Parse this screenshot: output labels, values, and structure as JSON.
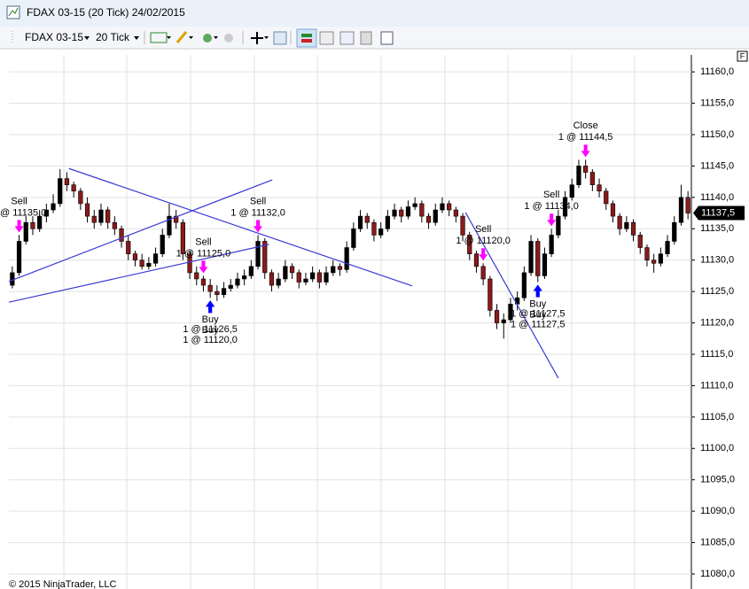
{
  "window": {
    "title": "FDAX 03-15 (20 Tick)  24/02/2015",
    "instrument": "FDAX 03-15",
    "period": "20 Tick",
    "footer": "© 2015 NinjaTrader, LLC",
    "corner": "F"
  },
  "chart_data": {
    "type": "candlestick",
    "ohlc": [
      [
        11126,
        11129,
        11125.5,
        11128
      ],
      [
        11128,
        11134,
        11127.5,
        11133
      ],
      [
        11133,
        11137,
        11132.5,
        11136
      ],
      [
        11136,
        11137,
        11134,
        11135
      ],
      [
        11135,
        11138,
        11134.5,
        11137
      ],
      [
        11137,
        11139,
        11136,
        11138
      ],
      [
        11138,
        11140.5,
        11137.5,
        11139
      ],
      [
        11139,
        11144.5,
        11138.5,
        11143
      ],
      [
        11143,
        11144,
        11141,
        11142
      ],
      [
        11142,
        11142.5,
        11140,
        11141
      ],
      [
        11141,
        11141.5,
        11138,
        11139
      ],
      [
        11139,
        11140,
        11136,
        11137
      ],
      [
        11137,
        11138,
        11135,
        11136
      ],
      [
        11136,
        11139,
        11135.5,
        11138
      ],
      [
        11138,
        11138.5,
        11135,
        11136
      ],
      [
        11136,
        11137,
        11134,
        11135
      ],
      [
        11135,
        11135.5,
        11132,
        11133
      ],
      [
        11133,
        11134,
        11130,
        11131
      ],
      [
        11131,
        11131.5,
        11129,
        11130
      ],
      [
        11130,
        11131,
        11128.5,
        11129
      ],
      [
        11129,
        11130.5,
        11128.5,
        11129.5
      ],
      [
        11129.5,
        11132,
        11129,
        11131
      ],
      [
        11131,
        11135,
        11130.5,
        11134
      ],
      [
        11134,
        11139,
        11133.5,
        11137
      ],
      [
        11137,
        11138,
        11135,
        11136
      ],
      [
        11136,
        11136.5,
        11130,
        11131
      ],
      [
        11131,
        11131.5,
        11127,
        11128
      ],
      [
        11128,
        11129,
        11126,
        11127
      ],
      [
        11127,
        11127.5,
        11125,
        11126
      ],
      [
        11126,
        11127,
        11124,
        11125
      ],
      [
        11125,
        11126,
        11123.5,
        11124.5
      ],
      [
        11124.5,
        11126.5,
        11124,
        11125.5
      ],
      [
        11125.5,
        11127,
        11125,
        11126
      ],
      [
        11126,
        11128,
        11125.5,
        11127
      ],
      [
        11127,
        11128.5,
        11126,
        11127.5
      ],
      [
        11127.5,
        11130,
        11127,
        11129
      ],
      [
        11129,
        11134,
        11128.5,
        11133
      ],
      [
        11133,
        11133.5,
        11127,
        11128
      ],
      [
        11128,
        11128.5,
        11125,
        11126
      ],
      [
        11126,
        11128,
        11125.5,
        11127
      ],
      [
        11127,
        11130,
        11126.5,
        11129
      ],
      [
        11129,
        11129.5,
        11127,
        11128
      ],
      [
        11128,
        11128.5,
        11125.5,
        11126.5
      ],
      [
        11126.5,
        11128,
        11126,
        11127
      ],
      [
        11127,
        11129,
        11126.5,
        11128
      ],
      [
        11128,
        11128.5,
        11125.5,
        11126.5
      ],
      [
        11126.5,
        11129,
        11126,
        11128
      ],
      [
        11128,
        11130,
        11127.5,
        11129
      ],
      [
        11129,
        11129.5,
        11127.5,
        11128.5
      ],
      [
        11128.5,
        11133,
        11128,
        11132
      ],
      [
        11132,
        11136,
        11131.5,
        11135
      ],
      [
        11135,
        11138,
        11134.5,
        11137
      ],
      [
        11137,
        11137.5,
        11135,
        11136
      ],
      [
        11136,
        11136.5,
        11133,
        11134
      ],
      [
        11134,
        11136,
        11133.5,
        11135
      ],
      [
        11135,
        11138,
        11134.5,
        11137
      ],
      [
        11137,
        11139,
        11136.5,
        11138
      ],
      [
        11138,
        11138.5,
        11136,
        11137
      ],
      [
        11137,
        11139.5,
        11136.5,
        11138.5
      ],
      [
        11138.5,
        11140,
        11138,
        11139
      ],
      [
        11139,
        11139.5,
        11136,
        11137
      ],
      [
        11137,
        11137.5,
        11135,
        11136
      ],
      [
        11136,
        11139,
        11135.5,
        11138
      ],
      [
        11138,
        11140,
        11137.5,
        11139
      ],
      [
        11139,
        11139.5,
        11137,
        11138
      ],
      [
        11138,
        11138.5,
        11136,
        11137
      ],
      [
        11137,
        11137.5,
        11133,
        11134
      ],
      [
        11134,
        11134.5,
        11130,
        11131
      ],
      [
        11131,
        11131.5,
        11128,
        11129
      ],
      [
        11129,
        11129.5,
        11126,
        11127
      ],
      [
        11127,
        11127.5,
        11121,
        11122
      ],
      [
        11122,
        11123,
        11119,
        11120
      ],
      [
        11120,
        11121.5,
        11117.5,
        11120.5
      ],
      [
        11120.5,
        11124,
        11120,
        11123
      ],
      [
        11123,
        11125,
        11122,
        11124
      ],
      [
        11124,
        11129,
        11123.5,
        11128
      ],
      [
        11128,
        11134,
        11127.5,
        11133
      ],
      [
        11133,
        11133.5,
        11126.5,
        11127.5
      ],
      [
        11127.5,
        11132,
        11127,
        11131
      ],
      [
        11131,
        11135,
        11130.5,
        11134
      ],
      [
        11134,
        11138,
        11133.5,
        11137
      ],
      [
        11137,
        11141,
        11136.5,
        11140
      ],
      [
        11140,
        11143,
        11139.5,
        11142
      ],
      [
        11142,
        11146,
        11141.5,
        11145
      ],
      [
        11145,
        11146,
        11143,
        11144
      ],
      [
        11144,
        11144.5,
        11141,
        11142
      ],
      [
        11142,
        11143,
        11140,
        11141
      ],
      [
        11141,
        11141.5,
        11138,
        11139
      ],
      [
        11139,
        11139.5,
        11136,
        11137
      ],
      [
        11137,
        11137.5,
        11134,
        11135
      ],
      [
        11135,
        11137,
        11134.5,
        11136
      ],
      [
        11136,
        11136.5,
        11133,
        11134
      ],
      [
        11134,
        11134.5,
        11131,
        11132
      ],
      [
        11132,
        11132.5,
        11129,
        11130
      ],
      [
        11130,
        11131,
        11128,
        11129.5
      ],
      [
        11129.5,
        11132,
        11129,
        11131
      ],
      [
        11131,
        11134,
        11130.5,
        11133
      ],
      [
        11133,
        11137,
        11132.5,
        11136
      ],
      [
        11136,
        11142,
        11135.5,
        11140
      ],
      [
        11140,
        11141,
        11136.5,
        11137.5
      ]
    ],
    "up_color": "#000000",
    "down_color": "#8b1a1a",
    "xlim": [
      -0.5,
      99.5
    ],
    "ylim": [
      11077.6,
      11162.7
    ],
    "yticks": [
      {
        "value": 11080,
        "label": "11080,0"
      },
      {
        "value": 11085,
        "label": "11085,0"
      },
      {
        "value": 11090,
        "label": "11090,0"
      },
      {
        "value": 11095,
        "label": "11095,0"
      },
      {
        "value": 11100,
        "label": "11100,0"
      },
      {
        "value": 11105,
        "label": "11105,0"
      },
      {
        "value": 11110,
        "label": "11110,0"
      },
      {
        "value": 11115,
        "label": "11115,0"
      },
      {
        "value": 11120,
        "label": "11120,0"
      },
      {
        "value": 11125,
        "label": "11125,0"
      },
      {
        "value": 11130,
        "label": "11130,0"
      },
      {
        "value": 11135,
        "label": "11135,0"
      },
      {
        "value": 11140,
        "label": "11140,0"
      },
      {
        "value": 11145,
        "label": "11145,0"
      },
      {
        "value": 11150,
        "label": "11150,0"
      },
      {
        "value": 11155,
        "label": "11155,0"
      },
      {
        "value": 11160,
        "label": "11160,0"
      }
    ],
    "grid": true,
    "last_price": 11137.5,
    "last_price_label": "11137,5",
    "lines": [
      {
        "x": [
          8.3,
          58.6
        ],
        "y": [
          11144.6,
          11125.9
        ]
      },
      {
        "x": [
          -0.5,
          38.1
        ],
        "y": [
          11126.6,
          11142.8
        ]
      },
      {
        "x": [
          -0.5,
          37.6
        ],
        "y": [
          11123.3,
          11132.5
        ]
      },
      {
        "x": [
          66.4,
          80.0
        ],
        "y": [
          11137.6,
          11111.2
        ]
      }
    ],
    "line_color": "#3a3ad6",
    "executions": [
      {
        "label": "Sell",
        "detail": "1 @ 11135,0",
        "index": 1,
        "price": 11135,
        "color": "#ff00ff"
      },
      {
        "label": "Sell",
        "detail": "1 @ 11125,0",
        "index": 28,
        "price": 11125,
        "color": "#ff00ff"
      },
      {
        "label": "Buy",
        "detail": "1 @ 11126,5",
        "index": 29,
        "price": 11126.5,
        "color": "#0000ff"
      },
      {
        "label": "Buy",
        "detail": "1 @ 11120,0",
        "index": 29,
        "price": 11120,
        "color": "#0000ff"
      },
      {
        "label": "Sell",
        "detail": "1 @ 11132,0",
        "index": 36,
        "price": 11132,
        "color": "#ff00ff"
      },
      {
        "label": "Sell",
        "detail": "1 @ 11120,0",
        "index": 69,
        "price": 11120,
        "color": "#ff00ff"
      },
      {
        "label": "Buy",
        "detail": "1 @ 11127,5",
        "index": 77,
        "price": 11127.5,
        "color": "#0000ff"
      },
      {
        "label": "Buy",
        "detail": "1 @ 11127,5",
        "index": 77,
        "price": 11127.5,
        "color": "#0000ff"
      },
      {
        "label": "Sell",
        "detail": "1 @ 11134,0",
        "index": 79,
        "price": 11134,
        "color": "#ff00ff"
      },
      {
        "label": "Close",
        "detail": "1 @ 11144,5",
        "index": 84,
        "price": 11144.5,
        "color": "#ff00ff"
      }
    ]
  }
}
